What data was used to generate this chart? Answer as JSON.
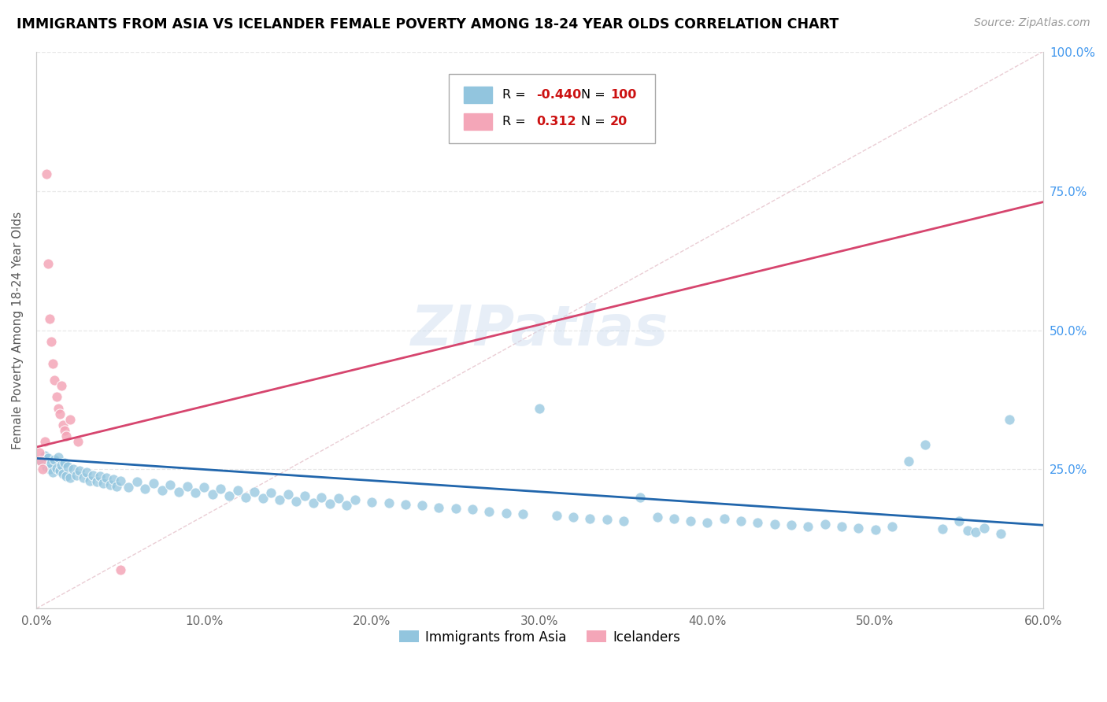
{
  "title": "IMMIGRANTS FROM ASIA VS ICELANDER FEMALE POVERTY AMONG 18-24 YEAR OLDS CORRELATION CHART",
  "source": "Source: ZipAtlas.com",
  "ylabel": "Female Poverty Among 18-24 Year Olds",
  "xlim": [
    0.0,
    0.6
  ],
  "ylim": [
    0.0,
    1.0
  ],
  "xtick_labels": [
    "0.0%",
    "10.0%",
    "20.0%",
    "30.0%",
    "40.0%",
    "50.0%",
    "60.0%"
  ],
  "xtick_vals": [
    0.0,
    0.1,
    0.2,
    0.3,
    0.4,
    0.5,
    0.6
  ],
  "ytick_labels": [
    "25.0%",
    "50.0%",
    "75.0%",
    "100.0%"
  ],
  "ytick_vals": [
    0.25,
    0.5,
    0.75,
    1.0
  ],
  "blue_color": "#92c5de",
  "pink_color": "#f4a6b8",
  "legend_blue_label": "Immigrants from Asia",
  "legend_pink_label": "Icelanders",
  "R_blue": -0.44,
  "N_blue": 100,
  "R_pink": 0.312,
  "N_pink": 20,
  "blue_scatter": [
    [
      0.003,
      0.265
    ],
    [
      0.005,
      0.275
    ],
    [
      0.006,
      0.255
    ],
    [
      0.007,
      0.27
    ],
    [
      0.008,
      0.25
    ],
    [
      0.009,
      0.26
    ],
    [
      0.01,
      0.245
    ],
    [
      0.011,
      0.268
    ],
    [
      0.012,
      0.252
    ],
    [
      0.013,
      0.272
    ],
    [
      0.014,
      0.248
    ],
    [
      0.015,
      0.258
    ],
    [
      0.016,
      0.242
    ],
    [
      0.017,
      0.262
    ],
    [
      0.018,
      0.238
    ],
    [
      0.019,
      0.255
    ],
    [
      0.02,
      0.235
    ],
    [
      0.022,
      0.25
    ],
    [
      0.024,
      0.24
    ],
    [
      0.026,
      0.248
    ],
    [
      0.028,
      0.235
    ],
    [
      0.03,
      0.245
    ],
    [
      0.032,
      0.23
    ],
    [
      0.034,
      0.24
    ],
    [
      0.036,
      0.228
    ],
    [
      0.038,
      0.238
    ],
    [
      0.04,
      0.225
    ],
    [
      0.042,
      0.235
    ],
    [
      0.044,
      0.222
    ],
    [
      0.046,
      0.232
    ],
    [
      0.048,
      0.22
    ],
    [
      0.05,
      0.23
    ],
    [
      0.055,
      0.218
    ],
    [
      0.06,
      0.228
    ],
    [
      0.065,
      0.215
    ],
    [
      0.07,
      0.225
    ],
    [
      0.075,
      0.212
    ],
    [
      0.08,
      0.222
    ],
    [
      0.085,
      0.21
    ],
    [
      0.09,
      0.22
    ],
    [
      0.095,
      0.208
    ],
    [
      0.1,
      0.218
    ],
    [
      0.105,
      0.205
    ],
    [
      0.11,
      0.215
    ],
    [
      0.115,
      0.203
    ],
    [
      0.12,
      0.213
    ],
    [
      0.125,
      0.2
    ],
    [
      0.13,
      0.21
    ],
    [
      0.135,
      0.198
    ],
    [
      0.14,
      0.208
    ],
    [
      0.145,
      0.195
    ],
    [
      0.15,
      0.205
    ],
    [
      0.155,
      0.193
    ],
    [
      0.16,
      0.203
    ],
    [
      0.165,
      0.19
    ],
    [
      0.17,
      0.2
    ],
    [
      0.175,
      0.188
    ],
    [
      0.18,
      0.198
    ],
    [
      0.185,
      0.185
    ],
    [
      0.19,
      0.195
    ],
    [
      0.2,
      0.192
    ],
    [
      0.21,
      0.19
    ],
    [
      0.22,
      0.187
    ],
    [
      0.23,
      0.185
    ],
    [
      0.24,
      0.182
    ],
    [
      0.25,
      0.18
    ],
    [
      0.26,
      0.178
    ],
    [
      0.27,
      0.175
    ],
    [
      0.28,
      0.172
    ],
    [
      0.29,
      0.17
    ],
    [
      0.3,
      0.36
    ],
    [
      0.31,
      0.168
    ],
    [
      0.32,
      0.165
    ],
    [
      0.33,
      0.162
    ],
    [
      0.34,
      0.16
    ],
    [
      0.35,
      0.157
    ],
    [
      0.36,
      0.2
    ],
    [
      0.37,
      0.165
    ],
    [
      0.38,
      0.162
    ],
    [
      0.39,
      0.158
    ],
    [
      0.4,
      0.155
    ],
    [
      0.41,
      0.162
    ],
    [
      0.42,
      0.158
    ],
    [
      0.43,
      0.155
    ],
    [
      0.44,
      0.152
    ],
    [
      0.45,
      0.15
    ],
    [
      0.46,
      0.147
    ],
    [
      0.47,
      0.152
    ],
    [
      0.48,
      0.148
    ],
    [
      0.49,
      0.145
    ],
    [
      0.5,
      0.142
    ],
    [
      0.51,
      0.148
    ],
    [
      0.52,
      0.265
    ],
    [
      0.53,
      0.295
    ],
    [
      0.54,
      0.143
    ],
    [
      0.55,
      0.158
    ],
    [
      0.555,
      0.14
    ],
    [
      0.56,
      0.138
    ],
    [
      0.565,
      0.145
    ],
    [
      0.575,
      0.135
    ],
    [
      0.58,
      0.34
    ]
  ],
  "pink_scatter": [
    [
      0.002,
      0.28
    ],
    [
      0.003,
      0.265
    ],
    [
      0.004,
      0.25
    ],
    [
      0.005,
      0.3
    ],
    [
      0.006,
      0.78
    ],
    [
      0.007,
      0.62
    ],
    [
      0.008,
      0.52
    ],
    [
      0.009,
      0.48
    ],
    [
      0.01,
      0.44
    ],
    [
      0.011,
      0.41
    ],
    [
      0.012,
      0.38
    ],
    [
      0.013,
      0.36
    ],
    [
      0.014,
      0.35
    ],
    [
      0.015,
      0.4
    ],
    [
      0.016,
      0.33
    ],
    [
      0.017,
      0.32
    ],
    [
      0.018,
      0.31
    ],
    [
      0.02,
      0.34
    ],
    [
      0.025,
      0.3
    ],
    [
      0.05,
      0.07
    ]
  ],
  "blue_trend_x": [
    0.0,
    0.6
  ],
  "blue_trend_y": [
    0.27,
    0.15
  ],
  "pink_trend_x": [
    0.0,
    0.6
  ],
  "pink_trend_y": [
    0.29,
    0.73
  ],
  "diag_line_x": [
    0.0,
    0.6
  ],
  "diag_line_y": [
    0.0,
    1.0
  ],
  "watermark": "ZIPatlas",
  "grid_color": "#e8e8e8",
  "diag_color": "#e8c8d0",
  "blue_trend_color": "#2166ac",
  "pink_trend_color": "#d6456e"
}
